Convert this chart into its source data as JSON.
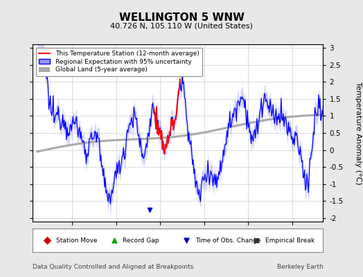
{
  "title": "WELLINGTON 5 WNW",
  "subtitle": "40.726 N, 105.110 W (United States)",
  "ylabel": "Temperature Anomaly (°C)",
  "xlabel_note": "Data Quality Controlled and Aligned at Breakpoints",
  "xlabel_right": "Berkeley Earth",
  "xlim": [
    1980.5,
    2013.5
  ],
  "ylim": [
    -2.1,
    3.1
  ],
  "yticks": [
    -2,
    -1.5,
    -1,
    -0.5,
    0,
    0.5,
    1,
    1.5,
    2,
    2.5,
    3
  ],
  "xticks": [
    1985,
    1990,
    1995,
    2000,
    2005,
    2010
  ],
  "background_color": "#e8e8e8",
  "plot_bg_color": "#ffffff",
  "grid_color": "#cccccc",
  "station_line_color": "#ff0000",
  "regional_line_color": "#0000ff",
  "regional_fill_color": "#9999ee",
  "global_line_color": "#aaaaaa",
  "legend_items": [
    "This Temperature Station (12-month average)",
    "Regional Expectation with 95% uncertainty",
    "Global Land (5-year average)"
  ],
  "marker_items": [
    {
      "label": "Station Move",
      "color": "#cc0000",
      "marker": "D"
    },
    {
      "label": "Record Gap",
      "color": "#00aa00",
      "marker": "^"
    },
    {
      "label": "Time of Obs. Change",
      "color": "#0000cc",
      "marker": "v"
    },
    {
      "label": "Empirical Break",
      "color": "#333333",
      "marker": "s"
    }
  ],
  "time_obs_change_year": 1993.8,
  "seed": 12345
}
